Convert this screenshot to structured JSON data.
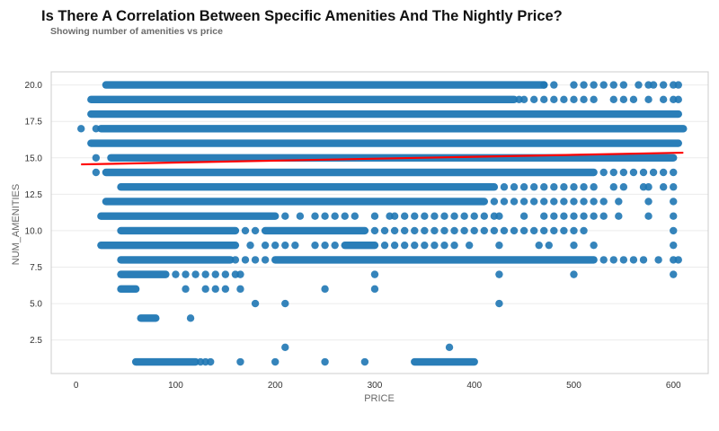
{
  "header": {
    "title": "Is There A Correlation Between Specific Amenities And The Nightly Price?",
    "subtitle": "Showing number of amenities vs price"
  },
  "chart_data": {
    "type": "scatter",
    "xlabel": "PRICE",
    "ylabel": "NUM_AMENITIES",
    "xlim": [
      -25,
      635
    ],
    "ylim": [
      0.2,
      20.9
    ],
    "x_ticks": [
      0,
      100,
      200,
      300,
      400,
      500,
      600
    ],
    "x_tick_labels": [
      "0",
      "100",
      "200",
      "300",
      "400",
      "500",
      "600"
    ],
    "y_ticks": [
      2.5,
      5.0,
      7.5,
      10.0,
      12.5,
      15.0,
      17.5,
      20.0
    ],
    "y_tick_labels": [
      "2.5",
      "5.0",
      "7.5",
      "10.0",
      "12.5",
      "15.0",
      "17.5",
      "20.0"
    ],
    "grid": "horizontal",
    "point_color": "#1f77b4",
    "regression_color": "#ff0000",
    "regression_line": {
      "x": [
        5,
        610
      ],
      "y": [
        14.55,
        15.35
      ]
    },
    "rows": [
      {
        "y": 20,
        "dense": [
          [
            30,
            470
          ]
        ],
        "points": [
          470,
          480,
          500,
          510,
          520,
          530,
          540,
          550,
          565,
          575,
          580,
          590,
          600,
          605
        ]
      },
      {
        "y": 19,
        "dense": [
          [
            15,
            440
          ]
        ],
        "points": [
          445,
          450,
          460,
          470,
          480,
          490,
          500,
          510,
          520,
          540,
          550,
          560,
          575,
          590,
          600,
          605
        ]
      },
      {
        "y": 18,
        "dense": [
          [
            15,
            605
          ]
        ],
        "points": []
      },
      {
        "y": 17,
        "dense": [
          [
            25,
            610
          ]
        ],
        "points": [
          5,
          20
        ]
      },
      {
        "y": 16,
        "dense": [
          [
            15,
            605
          ]
        ],
        "points": []
      },
      {
        "y": 15,
        "dense": [
          [
            35,
            600
          ]
        ],
        "points": [
          20
        ]
      },
      {
        "y": 14,
        "dense": [
          [
            30,
            520
          ]
        ],
        "points": [
          20,
          530,
          540,
          550,
          560,
          570,
          580,
          590,
          600
        ]
      },
      {
        "y": 13,
        "dense": [
          [
            45,
            420
          ]
        ],
        "points": [
          430,
          440,
          450,
          460,
          470,
          480,
          490,
          500,
          510,
          520,
          540,
          550,
          570,
          575,
          590,
          600
        ]
      },
      {
        "y": 12,
        "dense": [
          [
            30,
            410
          ]
        ],
        "points": [
          420,
          430,
          440,
          450,
          460,
          470,
          480,
          490,
          500,
          510,
          520,
          530,
          545,
          575,
          600
        ]
      },
      {
        "y": 11,
        "dense": [
          [
            25,
            200
          ]
        ],
        "points": [
          210,
          225,
          240,
          250,
          260,
          270,
          280,
          300,
          315,
          320,
          330,
          340,
          350,
          360,
          370,
          380,
          390,
          400,
          410,
          420,
          425,
          450,
          470,
          480,
          490,
          500,
          510,
          520,
          530,
          545,
          575,
          600
        ]
      },
      {
        "y": 10,
        "dense": [
          [
            45,
            160
          ],
          [
            190,
            290
          ]
        ],
        "points": [
          170,
          180,
          300,
          310,
          320,
          330,
          340,
          350,
          360,
          370,
          380,
          390,
          400,
          410,
          420,
          430,
          440,
          450,
          460,
          470,
          480,
          490,
          500,
          510,
          600
        ]
      },
      {
        "y": 9,
        "dense": [
          [
            25,
            160
          ],
          [
            270,
            300
          ]
        ],
        "points": [
          175,
          190,
          200,
          210,
          220,
          240,
          250,
          260,
          310,
          320,
          330,
          340,
          350,
          360,
          370,
          380,
          395,
          425,
          465,
          475,
          500,
          520,
          600
        ]
      },
      {
        "y": 8,
        "dense": [
          [
            45,
            155
          ],
          [
            200,
            520
          ]
        ],
        "points": [
          160,
          170,
          180,
          190,
          530,
          540,
          550,
          560,
          570,
          585,
          600,
          605
        ]
      },
      {
        "y": 7,
        "dense": [
          [
            45,
            90
          ]
        ],
        "points": [
          100,
          110,
          120,
          130,
          140,
          150,
          160,
          165,
          300,
          425,
          500,
          600
        ]
      },
      {
        "y": 6,
        "dense": [
          [
            45,
            60
          ]
        ],
        "points": [
          110,
          130,
          140,
          150,
          165,
          250,
          300
        ]
      },
      {
        "y": 5,
        "dense": [],
        "points": [
          180,
          210,
          425
        ]
      },
      {
        "y": 4,
        "dense": [
          [
            65,
            80
          ]
        ],
        "points": [
          115
        ]
      },
      {
        "y": 2,
        "dense": [],
        "points": [
          210,
          375
        ]
      },
      {
        "y": 1,
        "dense": [
          [
            60,
            120
          ],
          [
            340,
            400
          ]
        ],
        "points": [
          125,
          130,
          135,
          165,
          200,
          250,
          290
        ]
      }
    ]
  }
}
